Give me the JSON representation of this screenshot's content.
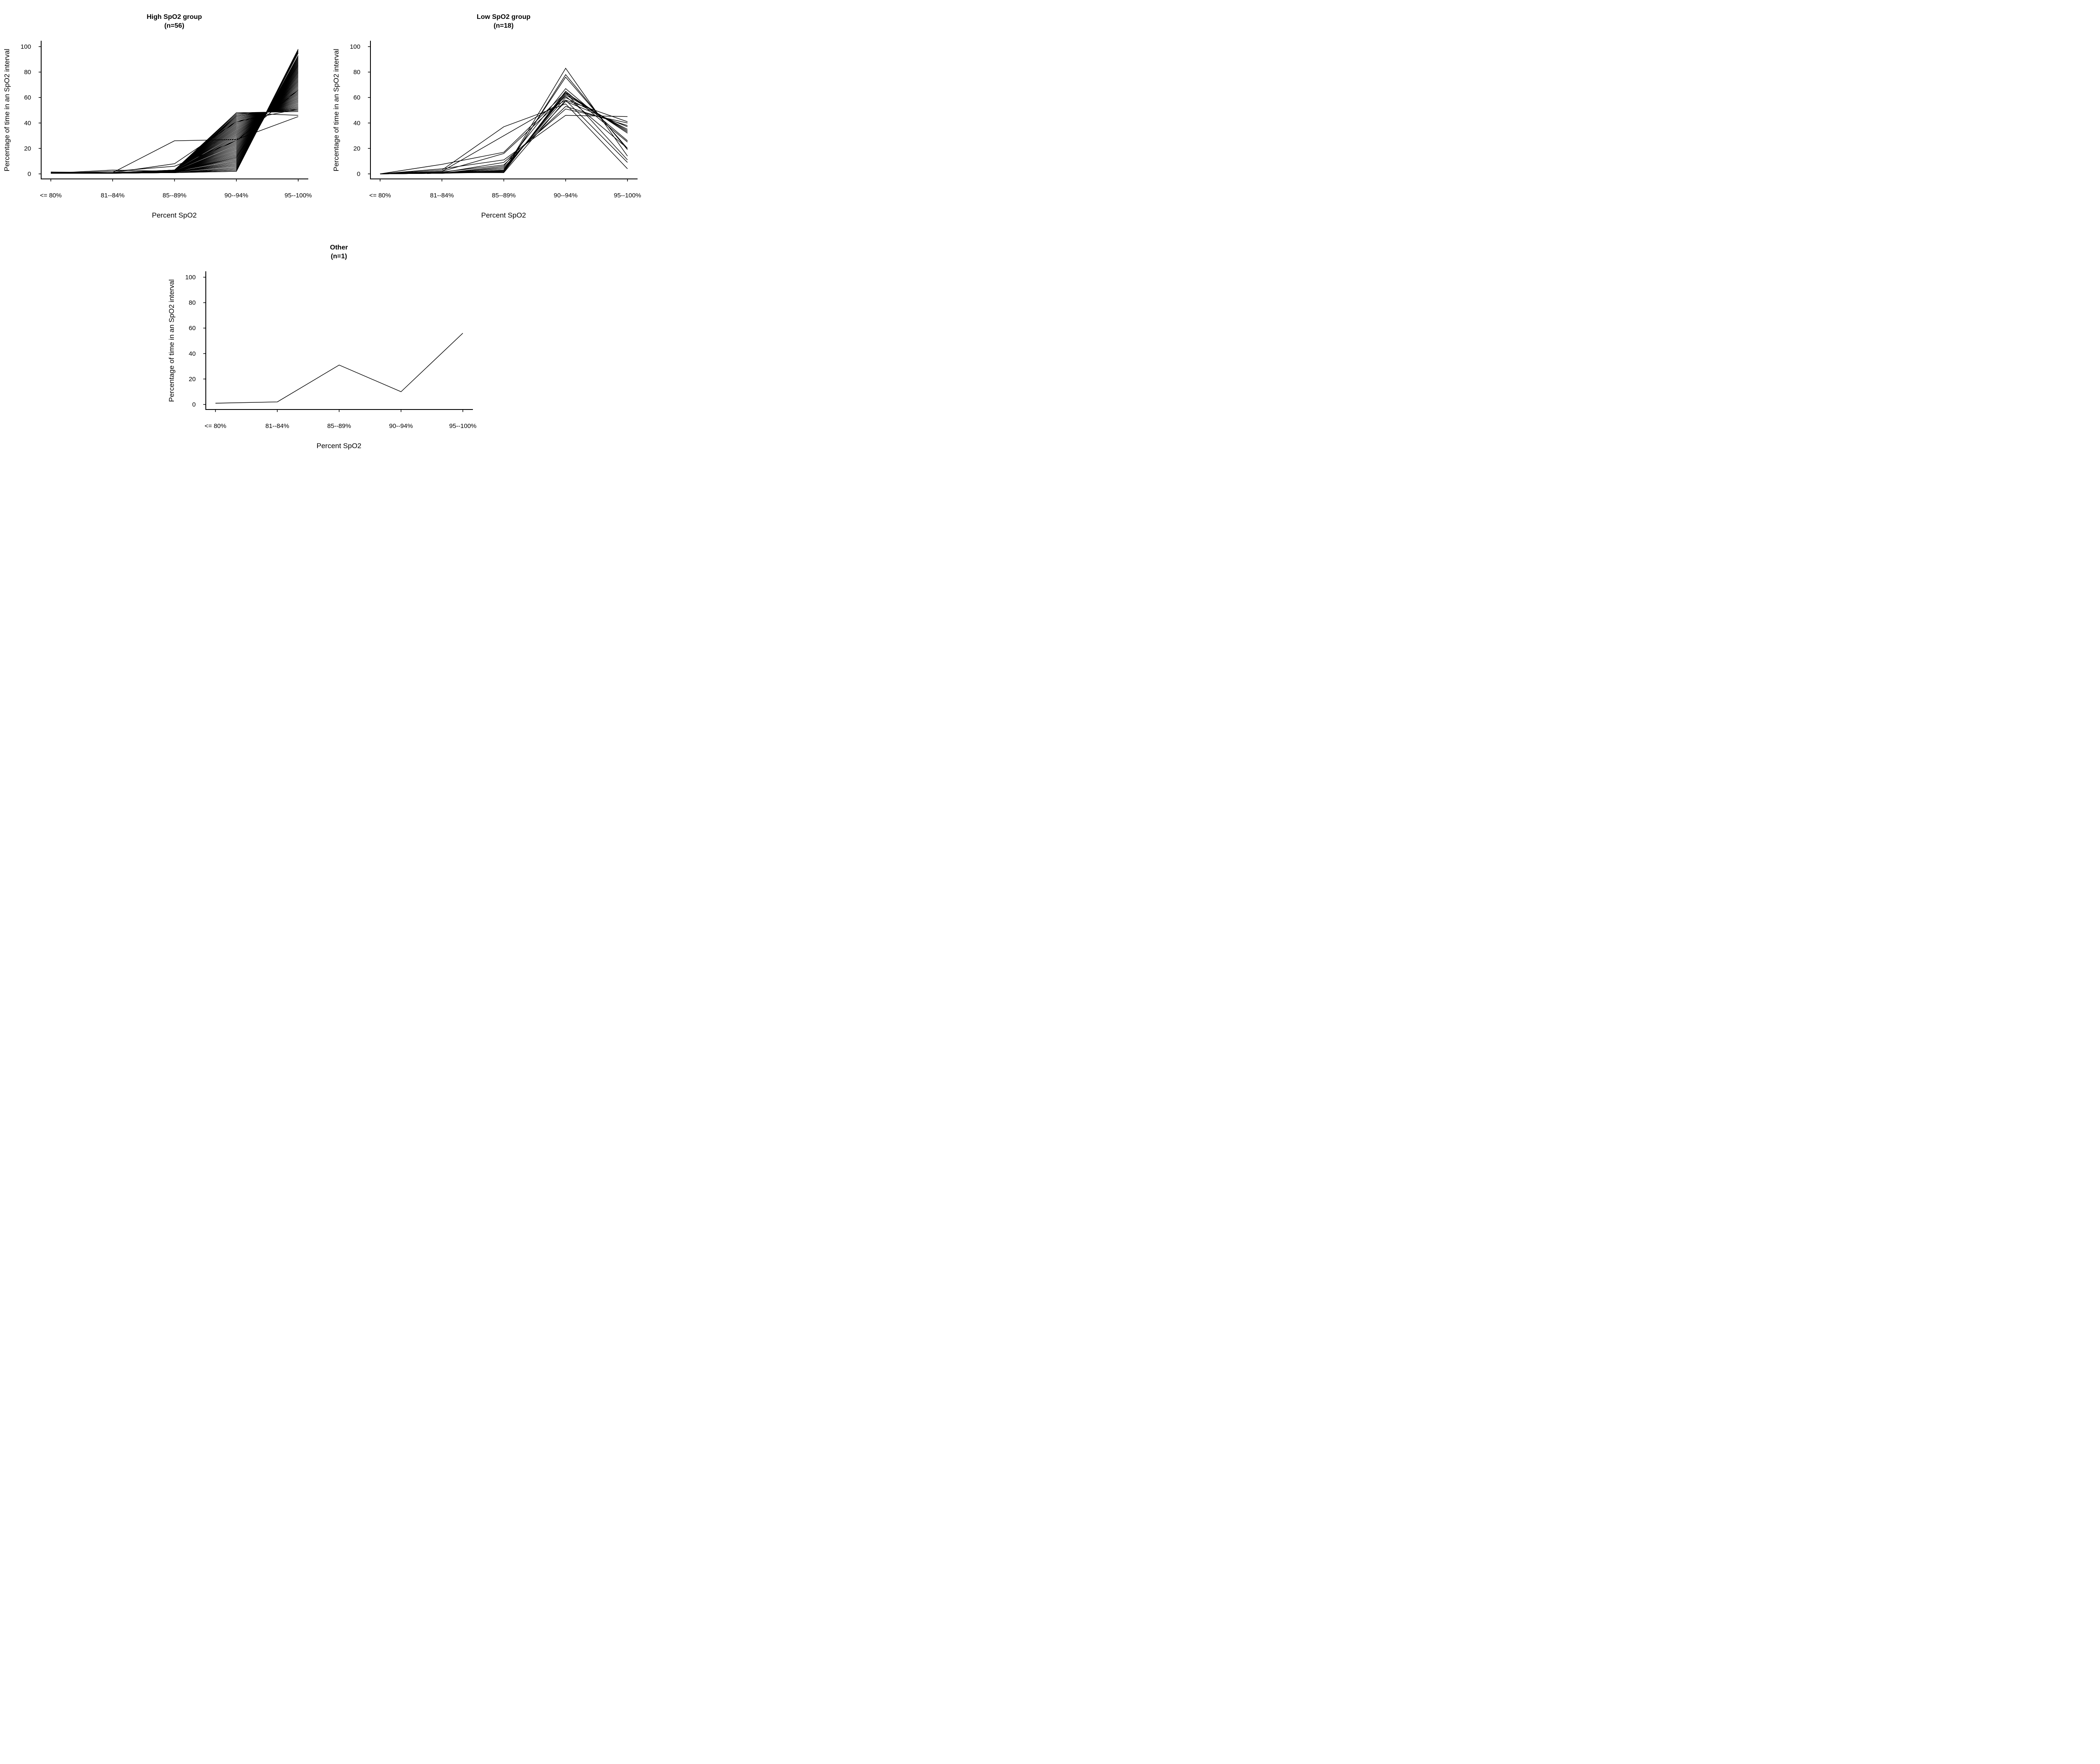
{
  "chart_data": [
    {
      "type": "line",
      "title": "High SpO2 group",
      "subtitle": "(n=56)",
      "xlabel": "Percent SpO2",
      "ylabel": "Percentage of time in an SpO2 interval",
      "categories": [
        "<= 80%",
        "81--84%",
        "85--89%",
        "90--94%",
        "95--100%"
      ],
      "yticks": [
        "0",
        "20",
        "40",
        "60",
        "80",
        "100"
      ],
      "ylim": [
        0,
        100
      ],
      "grid": false,
      "series": [
        {
          "values": [
            0.5,
            0.5,
            1,
            2,
            97
          ]
        },
        {
          "values": [
            0.5,
            0.5,
            1,
            3,
            95
          ]
        },
        {
          "values": [
            0.5,
            0.5,
            1,
            4,
            93
          ]
        },
        {
          "values": [
            0.5,
            0.5,
            1,
            5,
            92
          ]
        },
        {
          "values": [
            0.5,
            0.5,
            1.5,
            6,
            91
          ]
        },
        {
          "values": [
            0.5,
            0.5,
            1.5,
            7,
            90
          ]
        },
        {
          "values": [
            0.5,
            0.5,
            1.5,
            8,
            89
          ]
        },
        {
          "values": [
            0.5,
            0.5,
            1.5,
            9,
            88
          ]
        },
        {
          "values": [
            0.5,
            0.5,
            1.5,
            10,
            87
          ]
        },
        {
          "values": [
            0.5,
            0.5,
            2,
            11,
            86
          ]
        },
        {
          "values": [
            0.5,
            0.5,
            2,
            12,
            85
          ]
        },
        {
          "values": [
            0.5,
            1,
            2,
            13,
            84
          ]
        },
        {
          "values": [
            0.5,
            0.5,
            2,
            14,
            83
          ]
        },
        {
          "values": [
            0.5,
            0.5,
            2,
            15,
            82
          ]
        },
        {
          "values": [
            0.5,
            0.5,
            2,
            16,
            81
          ]
        },
        {
          "values": [
            0.5,
            0.5,
            2,
            17,
            80
          ]
        },
        {
          "values": [
            0.5,
            0.5,
            2,
            18,
            79
          ]
        },
        {
          "values": [
            0.5,
            1,
            2,
            19,
            78
          ]
        },
        {
          "values": [
            0.5,
            0.5,
            2,
            20,
            77
          ]
        },
        {
          "values": [
            0.5,
            0.5,
            2,
            21,
            76
          ]
        },
        {
          "values": [
            0.5,
            0.5,
            2,
            22,
            75
          ]
        },
        {
          "values": [
            0.5,
            0.5,
            2.5,
            23,
            74
          ]
        },
        {
          "values": [
            0.5,
            0.5,
            2.5,
            24,
            73
          ]
        },
        {
          "values": [
            0.5,
            0.5,
            2.5,
            25,
            72
          ]
        },
        {
          "values": [
            0.5,
            0.5,
            2.5,
            26,
            71
          ]
        },
        {
          "values": [
            0.5,
            1,
            2.5,
            27,
            70
          ]
        },
        {
          "values": [
            0.5,
            0.5,
            2.5,
            28,
            69
          ]
        },
        {
          "values": [
            0.5,
            0.5,
            2.5,
            29,
            68
          ]
        },
        {
          "values": [
            0.5,
            0.5,
            2.5,
            30,
            67
          ]
        },
        {
          "values": [
            0.5,
            0.5,
            3,
            31,
            66
          ]
        },
        {
          "values": [
            0.5,
            0.5,
            3,
            32,
            65
          ]
        },
        {
          "values": [
            0.5,
            0.5,
            3,
            33,
            64
          ]
        },
        {
          "values": [
            0.5,
            0.5,
            3,
            34,
            63
          ]
        },
        {
          "values": [
            0.5,
            1,
            3,
            35,
            62
          ]
        },
        {
          "values": [
            0.5,
            0.5,
            3,
            36,
            61
          ]
        },
        {
          "values": [
            0.5,
            0.5,
            3,
            37,
            60
          ]
        },
        {
          "values": [
            0.5,
            0.5,
            3,
            38,
            59
          ]
        },
        {
          "values": [
            0.5,
            0.5,
            3,
            39,
            58
          ]
        },
        {
          "values": [
            0.5,
            0.5,
            3,
            40,
            57
          ]
        },
        {
          "values": [
            0.5,
            0.5,
            3,
            41,
            56
          ]
        },
        {
          "values": [
            0.5,
            0.5,
            3,
            42,
            55
          ]
        },
        {
          "values": [
            0.5,
            1,
            3,
            43,
            54
          ]
        },
        {
          "values": [
            0.5,
            0.5,
            3,
            44,
            53
          ]
        },
        {
          "values": [
            0.5,
            0.5,
            3,
            45,
            52
          ]
        },
        {
          "values": [
            0.5,
            0.5,
            3,
            46,
            51
          ]
        },
        {
          "values": [
            0.5,
            0.5,
            3,
            47,
            50
          ]
        },
        {
          "values": [
            0.5,
            0.5,
            3,
            48,
            49
          ]
        },
        {
          "values": [
            0.5,
            1,
            8,
            41,
            51
          ]
        },
        {
          "values": [
            0.5,
            2,
            6,
            26,
            66
          ]
        },
        {
          "values": [
            1.5,
            1,
            26,
            27,
            45
          ]
        },
        {
          "values": [
            0.5,
            3,
            2,
            48,
            46
          ]
        },
        {
          "values": [
            1,
            0.5,
            1.5,
            46,
            51
          ]
        },
        {
          "values": [
            0.5,
            0.5,
            2,
            45,
            52
          ]
        },
        {
          "values": [
            0.5,
            0.5,
            1,
            3,
            96
          ]
        },
        {
          "values": [
            0.5,
            0.5,
            1,
            2,
            98
          ]
        },
        {
          "values": [
            0.5,
            0.5,
            1.5,
            13,
            85
          ]
        }
      ]
    },
    {
      "type": "line",
      "title": "Low SpO2 group",
      "subtitle": "(n=18)",
      "xlabel": "Percent SpO2",
      "ylabel": "Percentage of time in an SpO2 interval",
      "categories": [
        "<= 80%",
        "81--84%",
        "85--89%",
        "90--94%",
        "95--100%"
      ],
      "yticks": [
        "0",
        "20",
        "40",
        "60",
        "80",
        "100"
      ],
      "ylim": [
        0,
        100
      ],
      "grid": false,
      "series": [
        {
          "values": [
            0,
            0.5,
            2,
            83,
            14
          ]
        },
        {
          "values": [
            0,
            1,
            1.5,
            78,
            19
          ]
        },
        {
          "values": [
            0,
            0.5,
            3,
            76,
            20
          ]
        },
        {
          "values": [
            0,
            3,
            37,
            55,
            4
          ]
        },
        {
          "values": [
            0,
            2,
            30,
            58,
            9
          ]
        },
        {
          "values": [
            0,
            7.5,
            17,
            64,
            11
          ]
        },
        {
          "values": [
            0,
            2,
            16,
            61,
            20
          ]
        },
        {
          "values": [
            0,
            4,
            11,
            46,
            45
          ]
        },
        {
          "values": [
            0,
            1,
            9,
            51,
            40
          ]
        },
        {
          "values": [
            0,
            1.5,
            7,
            53,
            38
          ]
        },
        {
          "values": [
            0,
            0.5,
            5,
            57,
            37
          ]
        },
        {
          "values": [
            0,
            0.5,
            4,
            60,
            35
          ]
        },
        {
          "values": [
            0,
            0.5,
            3,
            62,
            34
          ]
        },
        {
          "values": [
            0,
            1,
            2.5,
            63,
            33
          ]
        },
        {
          "values": [
            0,
            0.5,
            2,
            64,
            32
          ]
        },
        {
          "values": [
            0,
            0.5,
            6,
            67,
            26
          ]
        },
        {
          "values": [
            0,
            0.5,
            1.5,
            65,
            25
          ]
        },
        {
          "values": [
            0,
            1,
            1,
            58,
            41
          ]
        }
      ]
    },
    {
      "type": "line",
      "title": "Other",
      "subtitle": "(n=1)",
      "xlabel": "Percent SpO2",
      "ylabel": "Percentage of time in an SpO2 interval",
      "categories": [
        "<= 80%",
        "81--84%",
        "85--89%",
        "90--94%",
        "95--100%"
      ],
      "yticks": [
        "0",
        "20",
        "40",
        "60",
        "80",
        "100"
      ],
      "ylim": [
        0,
        100
      ],
      "grid": false,
      "series": [
        {
          "values": [
            1,
            2,
            31,
            10,
            56
          ]
        }
      ]
    }
  ]
}
